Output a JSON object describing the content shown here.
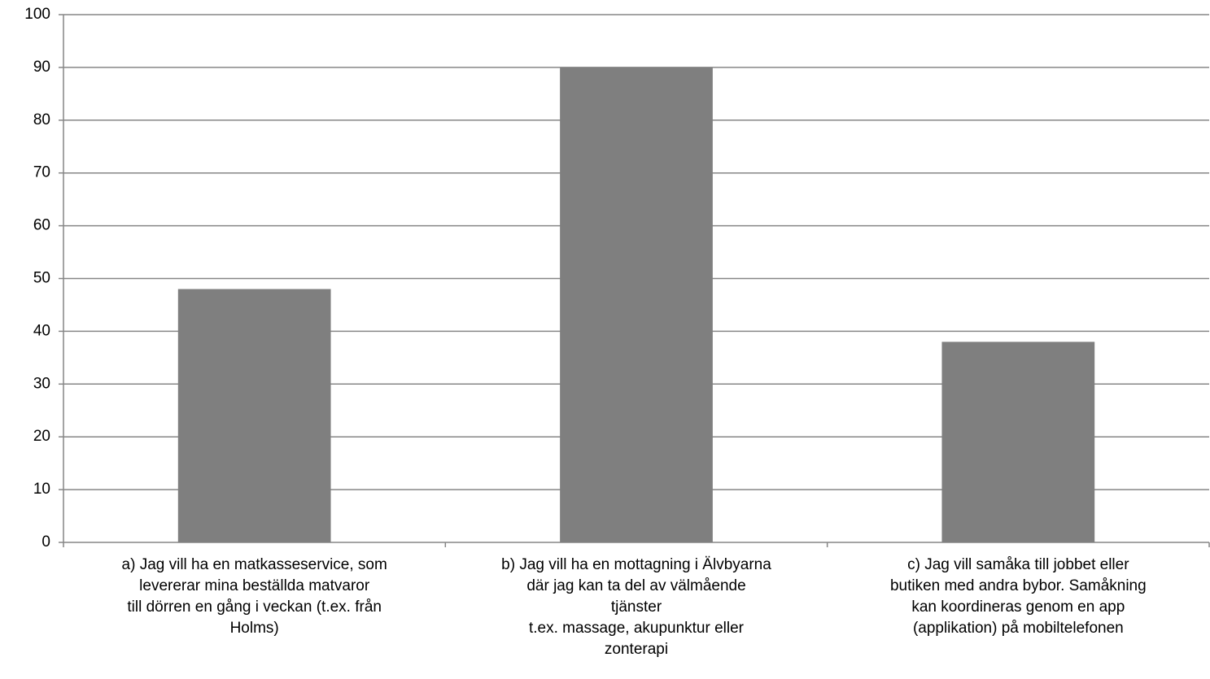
{
  "chart_data": {
    "type": "bar",
    "categories": [
      [
        "a) Jag vill ha en matkasseservice, som",
        "levererar mina beställda matvaror",
        "till dörren en gång i veckan (t.ex. från",
        "Holms)"
      ],
      [
        "b) Jag vill ha en mottagning i Älvbyarna",
        "där jag kan ta del av välmående",
        "tjänster",
        "t.ex. massage, akupunktur eller",
        "zonterapi"
      ],
      [
        "c) Jag vill samåka till jobbet eller",
        "butiken med andra bybor. Samåkning",
        "kan koordineras genom en app",
        "(applikation) på mobiltelefonen"
      ]
    ],
    "values": [
      48,
      90,
      38
    ],
    "color": "#7f7f7f",
    "ylim": [
      0,
      100
    ],
    "yticks": [
      0,
      10,
      20,
      30,
      40,
      50,
      60,
      70,
      80,
      90,
      100
    ],
    "grid": true
  }
}
